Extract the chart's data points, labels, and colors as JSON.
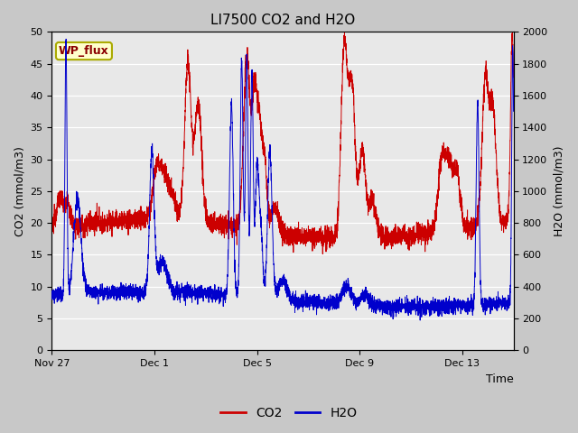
{
  "title": "LI7500 CO2 and H2O",
  "xlabel": "Time",
  "ylabel_left": "CO2 (mmol/m3)",
  "ylabel_right": "H2O (mmol/m3)",
  "co2_color": "#CC0000",
  "h2o_color": "#0000CC",
  "ylim_left": [
    0,
    50
  ],
  "ylim_right": [
    0,
    2000
  ],
  "yticks_left": [
    0,
    5,
    10,
    15,
    20,
    25,
    30,
    35,
    40,
    45,
    50
  ],
  "yticks_right": [
    0,
    200,
    400,
    600,
    800,
    1000,
    1200,
    1400,
    1600,
    1800,
    2000
  ],
  "xtick_labels": [
    "Nov 27",
    "Dec 1",
    "Dec 5",
    "Dec 9",
    "Dec 13"
  ],
  "xtick_positions": [
    0,
    4,
    8,
    12,
    16
  ],
  "xlim": [
    0,
    18
  ],
  "wp_flux_label": "WP_flux",
  "legend_labels": [
    "CO2",
    "H2O"
  ],
  "plot_bg_color": "#e8e8e8",
  "fig_bg_color": "#c8c8c8",
  "line_width": 0.7,
  "annotation_box_color": "#ffffcc",
  "annotation_box_edge": "#aaaa00",
  "title_fontsize": 11,
  "axis_fontsize": 9,
  "tick_fontsize": 8
}
